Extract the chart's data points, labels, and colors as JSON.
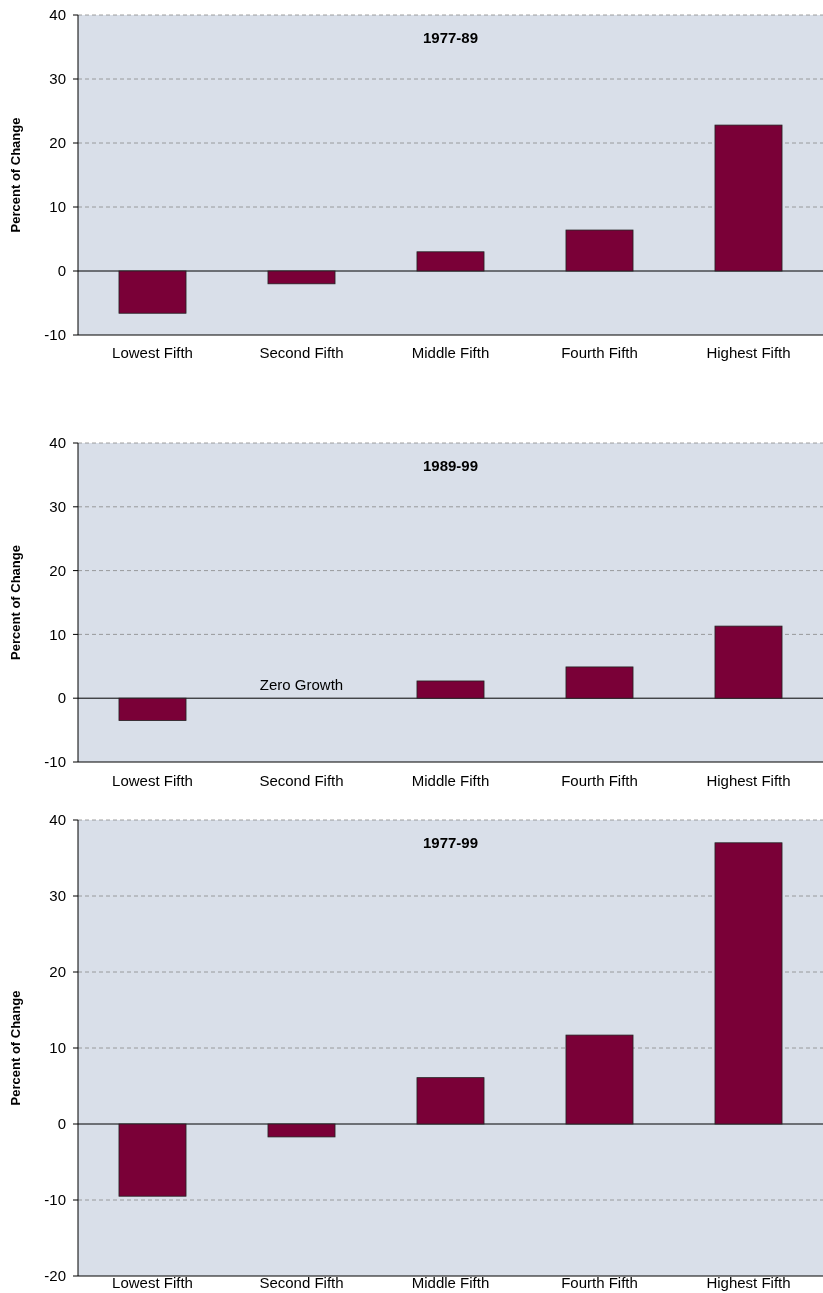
{
  "chart_data": [
    {
      "type": "bar",
      "title": "1977-89",
      "ylabel": "Percent of Change",
      "categories": [
        "Lowest Fifth",
        "Second Fifth",
        "Middle Fifth",
        "Fourth Fifth",
        "Highest Fifth"
      ],
      "values": [
        -6.6,
        -2.0,
        3.0,
        6.4,
        22.8
      ],
      "color": "#7a0037",
      "ylim": [
        -10,
        40
      ],
      "yticks": [
        -10,
        0,
        10,
        20,
        30,
        40
      ],
      "grid": "y"
    },
    {
      "type": "bar",
      "title": "1989-99",
      "ylabel": "Percent of Change",
      "categories": [
        "Lowest Fifth",
        "Second Fifth",
        "Middle Fifth",
        "Fourth Fifth",
        "Highest Fifth"
      ],
      "values": [
        -3.5,
        0,
        2.7,
        4.9,
        11.3
      ],
      "color": "#7a0037",
      "ylim": [
        -10,
        40
      ],
      "yticks": [
        -10,
        0,
        10,
        20,
        30,
        40
      ],
      "grid": "y",
      "annotations": [
        {
          "text": "Zero Growth",
          "x": "Second Fifth",
          "y": 0
        }
      ]
    },
    {
      "type": "bar",
      "title": "1977-99",
      "ylabel": "Percent of Change",
      "categories": [
        "Lowest Fifth",
        "Second Fifth",
        "Middle Fifth",
        "Fourth Fifth",
        "Highest Fifth"
      ],
      "values": [
        -9.5,
        -1.7,
        6.1,
        11.7,
        37.0
      ],
      "color": "#7a0037",
      "ylim": [
        -20,
        40
      ],
      "yticks": [
        -20,
        -10,
        0,
        10,
        20,
        30,
        40
      ],
      "grid": "y"
    }
  ]
}
